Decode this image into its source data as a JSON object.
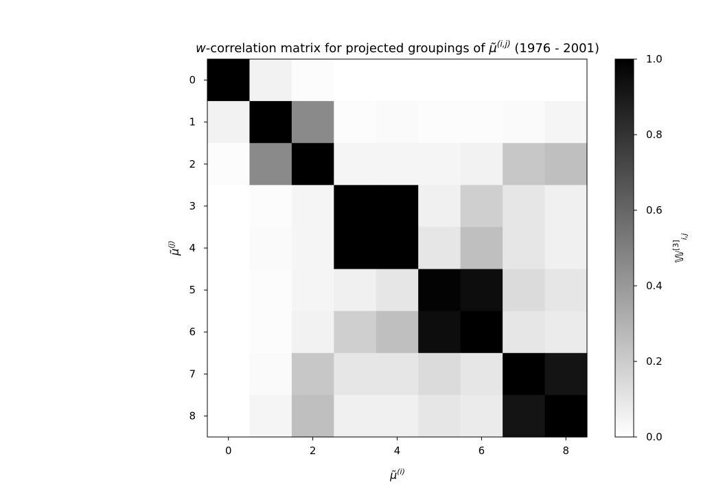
{
  "chart_data": {
    "type": "heatmap",
    "title": {
      "pre": "w",
      "mid": "-correlation matrix for projected groupings of ",
      "mu": "μ̃",
      "sup": "(i,j)",
      "post": " (1976 - 2001)"
    },
    "xlabel": {
      "base": "μ̃",
      "sup": "(i)"
    },
    "ylabel": {
      "base": "μ̃",
      "sup": "(j)"
    },
    "colorbar_label": {
      "base": "𝕎",
      "sup": "[3]",
      "sub": "i,j"
    },
    "x_ticks": [
      "0",
      "2",
      "4",
      "6",
      "8"
    ],
    "y_ticks": [
      "0",
      "1",
      "2",
      "3",
      "4",
      "5",
      "6",
      "7",
      "8"
    ],
    "colorbar_ticks": [
      "0.0",
      "0.2",
      "0.4",
      "0.6",
      "0.8",
      "1.0"
    ],
    "colormap": "gray_r",
    "vmin": 0.0,
    "vmax": 1.0,
    "matrix": [
      [
        1.0,
        0.05,
        0.01,
        0.0,
        0.0,
        0.0,
        0.0,
        0.0,
        0.0
      ],
      [
        0.05,
        1.0,
        0.46,
        0.01,
        0.02,
        0.01,
        0.01,
        0.02,
        0.04
      ],
      [
        0.01,
        0.46,
        1.0,
        0.04,
        0.04,
        0.04,
        0.05,
        0.22,
        0.25
      ],
      [
        0.0,
        0.01,
        0.04,
        1.0,
        1.0,
        0.06,
        0.19,
        0.1,
        0.06
      ],
      [
        0.0,
        0.02,
        0.04,
        1.0,
        1.0,
        0.1,
        0.25,
        0.1,
        0.06
      ],
      [
        0.0,
        0.01,
        0.04,
        0.06,
        0.1,
        0.99,
        0.95,
        0.14,
        0.1
      ],
      [
        0.0,
        0.01,
        0.05,
        0.19,
        0.25,
        0.95,
        1.0,
        0.1,
        0.08
      ],
      [
        0.0,
        0.02,
        0.22,
        0.1,
        0.1,
        0.14,
        0.1,
        1.0,
        0.92
      ],
      [
        0.0,
        0.04,
        0.25,
        0.06,
        0.06,
        0.1,
        0.08,
        0.92,
        1.0
      ]
    ]
  }
}
